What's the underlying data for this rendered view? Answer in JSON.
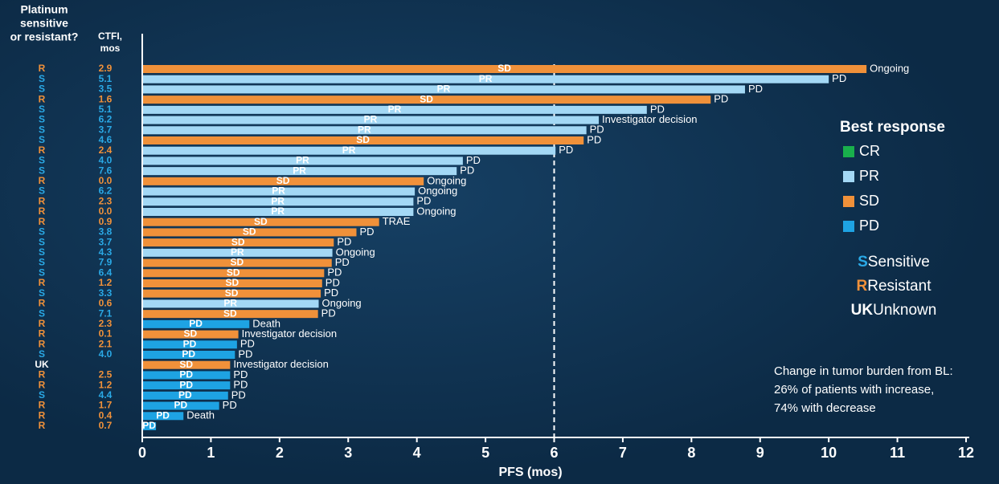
{
  "chart_data": {
    "type": "swimmer",
    "header_status": [
      "Platinum",
      "sensitive",
      "or resistant?"
    ],
    "header_ctfi": [
      "CTFI,",
      "mos"
    ],
    "platinum": [
      "R",
      "S",
      "S",
      "R",
      "S",
      "S",
      "S",
      "S",
      "R",
      "S",
      "S",
      "R",
      "S",
      "R",
      "R",
      "R",
      "S",
      "S",
      "S",
      "S",
      "S",
      "R",
      "S",
      "R",
      "S",
      "R",
      "R",
      "R",
      "S",
      "UK",
      "R",
      "R",
      "S",
      "R",
      "R",
      "R"
    ],
    "ctfi": [
      "2.9",
      "5.1",
      "3.5",
      "1.6",
      "5.1",
      "6.2",
      "3.7",
      "4.6",
      "2.4",
      "4.0",
      "7.6",
      "0.0",
      "6.2",
      "2.3",
      "0.0",
      "0.9",
      "3.8",
      "3.7",
      "4.3",
      "7.9",
      "6.4",
      "1.2",
      "3.3",
      "0.6",
      "7.1",
      "2.3",
      "0.1",
      "2.1",
      "4.0",
      null,
      "2.5",
      "1.2",
      "4.4",
      "1.7",
      "0.4",
      "0.7"
    ],
    "response": [
      "SD",
      "PR",
      "PR",
      "SD",
      "PR",
      "PR",
      "PR",
      "SD",
      "PR",
      "PR",
      "PR",
      "SD",
      "PR",
      "PR",
      "PR",
      "SD",
      "SD",
      "SD",
      "PR",
      "SD",
      "SD",
      "SD",
      "SD",
      "PR",
      "SD",
      "PD",
      "SD",
      "PD",
      "PD",
      "SD",
      "PD",
      "PD",
      "PD",
      "PD",
      "PD",
      "PD"
    ],
    "values": [
      10.55,
      10.0,
      8.78,
      8.28,
      7.35,
      6.65,
      6.47,
      6.43,
      6.02,
      4.67,
      4.58,
      4.1,
      3.97,
      3.95,
      3.95,
      3.45,
      3.12,
      2.79,
      2.77,
      2.76,
      2.65,
      2.62,
      2.6,
      2.57,
      2.56,
      1.56,
      1.4,
      1.38,
      1.35,
      1.28,
      1.28,
      1.28,
      1.25,
      1.12,
      0.6,
      0.2
    ],
    "end_labels": [
      "Ongoing",
      "PD",
      "PD",
      "PD",
      "PD",
      "Investigator decision",
      "PD",
      "PD",
      "PD",
      "PD",
      "PD",
      "Ongoing",
      "Ongoing",
      "PD",
      "Ongoing",
      "TRAE",
      "PD",
      "PD",
      "Ongoing",
      "PD",
      "PD",
      "PD",
      "PD",
      "Ongoing",
      "PD",
      "Death",
      "Investigator decision",
      "PD",
      "PD",
      "Investigator decision",
      "PD",
      "PD",
      "PD",
      "PD",
      "Death",
      null
    ],
    "xlim": [
      0,
      12
    ],
    "xticks": [
      0,
      1,
      2,
      3,
      4,
      5,
      6,
      7,
      8,
      9,
      10,
      11,
      12
    ],
    "xlabel": "PFS (mos)",
    "ref_line": 6,
    "legend_title": "Best response",
    "legend": [
      {
        "name": "CR",
        "color": "#19b04c"
      },
      {
        "name": "PR",
        "color": "#a3d8f5"
      },
      {
        "name": "SD",
        "color": "#f0913a"
      },
      {
        "name": "PD",
        "color": "#1ea3e3"
      }
    ],
    "status_legend": [
      {
        "code": "S",
        "label": "Sensitive",
        "color": "#2aa9e6"
      },
      {
        "code": "R",
        "label": "Resistant",
        "color": "#f0913a"
      },
      {
        "code": "UK",
        "label": "Unknown",
        "color": "#ffffff"
      }
    ],
    "annotation": [
      "Change in tumor burden from BL:",
      "26% of patients with increase,",
      "74% with decrease"
    ]
  }
}
